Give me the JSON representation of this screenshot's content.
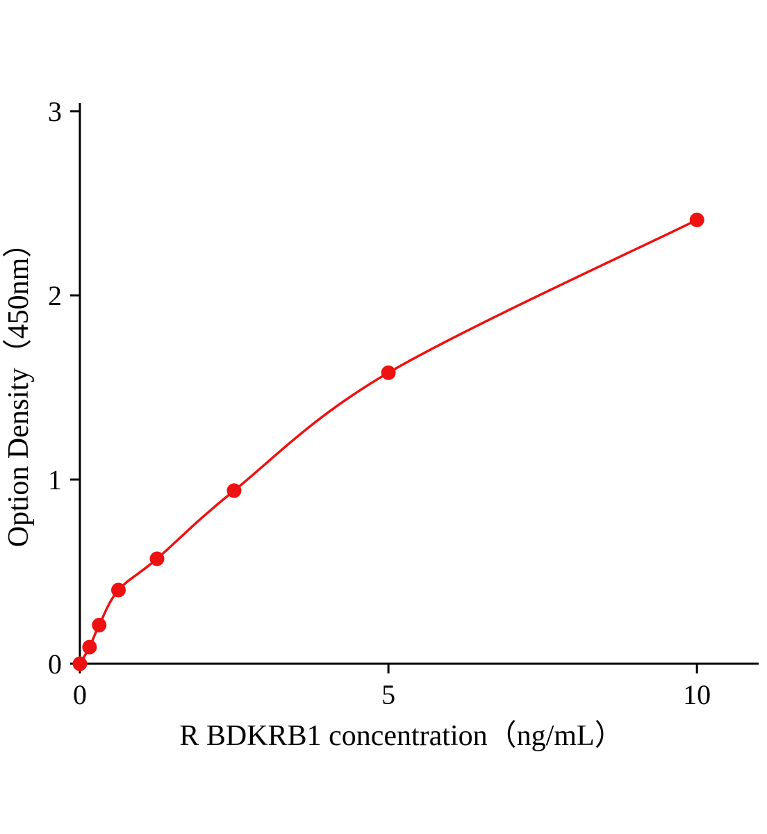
{
  "chart_data": {
    "type": "scatter",
    "title": "",
    "xlabel": "R BDKRB1  concentration（ng/mL）",
    "ylabel": "Option Density（450nm）",
    "x": [
      0,
      0.156,
      0.3125,
      0.625,
      1.25,
      2.5,
      5,
      10
    ],
    "y": [
      0.0,
      0.09,
      0.21,
      0.4,
      0.57,
      0.94,
      1.58,
      2.41
    ],
    "xticks": [
      0,
      5,
      10
    ],
    "yticks": [
      0,
      1,
      2,
      3
    ],
    "xlim": [
      0,
      11
    ],
    "ylim": [
      0,
      3
    ],
    "grid": false,
    "legend": "none",
    "curve_style": "smooth",
    "point_shape": "filled-circle",
    "colors": {
      "curve": "#ee1111",
      "points": "#ee1111",
      "axis": "#000000",
      "background": "#ffffff"
    }
  }
}
